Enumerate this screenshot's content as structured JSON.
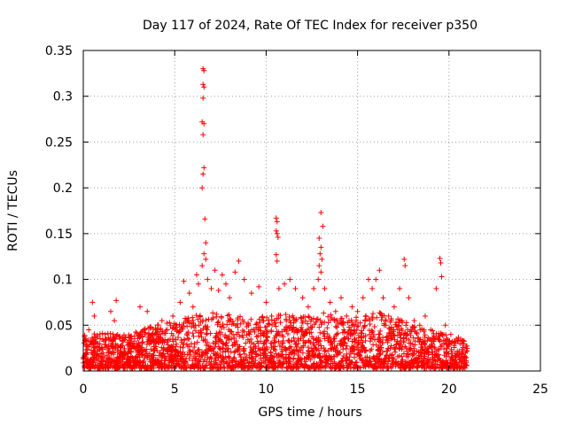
{
  "chart_data": {
    "type": "scatter",
    "title": "Day 117 of 2024, Rate Of TEC Index for receiver p350",
    "xlabel": "GPS time / hours",
    "ylabel": "ROTI / TECUs",
    "xlim": [
      0,
      25
    ],
    "ylim": [
      0,
      0.35
    ],
    "xticks": [
      0,
      5,
      10,
      15,
      20,
      25
    ],
    "xtick_labels": [
      "0",
      "5",
      "10",
      "15",
      "20",
      "25"
    ],
    "yticks": [
      0,
      0.05,
      0.1,
      0.15,
      0.2,
      0.25,
      0.3,
      0.35
    ],
    "ytick_labels": [
      "0",
      "0.05",
      "0.1",
      "0.15",
      "0.2",
      "0.25",
      "0.3",
      "0.35"
    ],
    "grid": true,
    "marker": "+",
    "color": "#ff0000",
    "points": [
      {
        "x": 0.1,
        "y": 0.035
      },
      {
        "x": 0.2,
        "y": 0.02
      },
      {
        "x": 0.3,
        "y": 0.045
      },
      {
        "x": 0.5,
        "y": 0.075
      },
      {
        "x": 0.6,
        "y": 0.06
      },
      {
        "x": 0.8,
        "y": 0.03
      },
      {
        "x": 1.0,
        "y": 0.025
      },
      {
        "x": 1.2,
        "y": 0.04
      },
      {
        "x": 1.5,
        "y": 0.065
      },
      {
        "x": 1.7,
        "y": 0.055
      },
      {
        "x": 1.8,
        "y": 0.077
      },
      {
        "x": 2.0,
        "y": 0.035
      },
      {
        "x": 2.3,
        "y": 0.02
      },
      {
        "x": 2.6,
        "y": 0.03
      },
      {
        "x": 2.9,
        "y": 0.025
      },
      {
        "x": 3.1,
        "y": 0.07
      },
      {
        "x": 3.3,
        "y": 0.045
      },
      {
        "x": 3.5,
        "y": 0.065
      },
      {
        "x": 3.8,
        "y": 0.04
      },
      {
        "x": 4.0,
        "y": 0.035
      },
      {
        "x": 4.3,
        "y": 0.055
      },
      {
        "x": 4.6,
        "y": 0.045
      },
      {
        "x": 4.9,
        "y": 0.06
      },
      {
        "x": 5.1,
        "y": 0.05
      },
      {
        "x": 5.3,
        "y": 0.075
      },
      {
        "x": 5.5,
        "y": 0.098
      },
      {
        "x": 5.8,
        "y": 0.085
      },
      {
        "x": 6.0,
        "y": 0.07
      },
      {
        "x": 6.2,
        "y": 0.105
      },
      {
        "x": 6.3,
        "y": 0.095
      },
      {
        "x": 6.55,
        "y": 0.33
      },
      {
        "x": 6.6,
        "y": 0.328
      },
      {
        "x": 6.55,
        "y": 0.313
      },
      {
        "x": 6.6,
        "y": 0.31
      },
      {
        "x": 6.55,
        "y": 0.298
      },
      {
        "x": 6.5,
        "y": 0.272
      },
      {
        "x": 6.6,
        "y": 0.27
      },
      {
        "x": 6.55,
        "y": 0.258
      },
      {
        "x": 6.6,
        "y": 0.222
      },
      {
        "x": 6.55,
        "y": 0.215
      },
      {
        "x": 6.5,
        "y": 0.2
      },
      {
        "x": 6.65,
        "y": 0.166
      },
      {
        "x": 6.7,
        "y": 0.14
      },
      {
        "x": 6.6,
        "y": 0.128
      },
      {
        "x": 6.7,
        "y": 0.122
      },
      {
        "x": 6.5,
        "y": 0.115
      },
      {
        "x": 6.8,
        "y": 0.1
      },
      {
        "x": 7.0,
        "y": 0.09
      },
      {
        "x": 7.2,
        "y": 0.11
      },
      {
        "x": 7.4,
        "y": 0.088
      },
      {
        "x": 7.6,
        "y": 0.105
      },
      {
        "x": 7.8,
        "y": 0.095
      },
      {
        "x": 8.0,
        "y": 0.08
      },
      {
        "x": 8.3,
        "y": 0.108
      },
      {
        "x": 8.5,
        "y": 0.12
      },
      {
        "x": 8.8,
        "y": 0.1
      },
      {
        "x": 9.2,
        "y": 0.085
      },
      {
        "x": 9.6,
        "y": 0.092
      },
      {
        "x": 10.0,
        "y": 0.075
      },
      {
        "x": 10.3,
        "y": 0.06
      },
      {
        "x": 10.55,
        "y": 0.167
      },
      {
        "x": 10.6,
        "y": 0.163
      },
      {
        "x": 10.55,
        "y": 0.153
      },
      {
        "x": 10.6,
        "y": 0.15
      },
      {
        "x": 10.65,
        "y": 0.146
      },
      {
        "x": 10.55,
        "y": 0.127
      },
      {
        "x": 10.6,
        "y": 0.12
      },
      {
        "x": 10.7,
        "y": 0.09
      },
      {
        "x": 11.0,
        "y": 0.095
      },
      {
        "x": 11.3,
        "y": 0.1
      },
      {
        "x": 11.6,
        "y": 0.09
      },
      {
        "x": 12.0,
        "y": 0.08
      },
      {
        "x": 12.3,
        "y": 0.07
      },
      {
        "x": 12.6,
        "y": 0.09
      },
      {
        "x": 13.0,
        "y": 0.173
      },
      {
        "x": 13.1,
        "y": 0.158
      },
      {
        "x": 12.9,
        "y": 0.145
      },
      {
        "x": 13.0,
        "y": 0.135
      },
      {
        "x": 12.95,
        "y": 0.128
      },
      {
        "x": 13.05,
        "y": 0.122
      },
      {
        "x": 12.9,
        "y": 0.115
      },
      {
        "x": 13.0,
        "y": 0.108
      },
      {
        "x": 12.85,
        "y": 0.1
      },
      {
        "x": 13.2,
        "y": 0.09
      },
      {
        "x": 13.5,
        "y": 0.075
      },
      {
        "x": 13.8,
        "y": 0.065
      },
      {
        "x": 14.1,
        "y": 0.08
      },
      {
        "x": 14.4,
        "y": 0.06
      },
      {
        "x": 14.7,
        "y": 0.07
      },
      {
        "x": 15.0,
        "y": 0.065
      },
      {
        "x": 15.3,
        "y": 0.08
      },
      {
        "x": 15.6,
        "y": 0.1
      },
      {
        "x": 15.8,
        "y": 0.09
      },
      {
        "x": 16.0,
        "y": 0.1
      },
      {
        "x": 16.2,
        "y": 0.11
      },
      {
        "x": 16.4,
        "y": 0.08
      },
      {
        "x": 16.7,
        "y": 0.06
      },
      {
        "x": 17.0,
        "y": 0.07
      },
      {
        "x": 17.3,
        "y": 0.09
      },
      {
        "x": 17.55,
        "y": 0.122
      },
      {
        "x": 17.6,
        "y": 0.115
      },
      {
        "x": 17.8,
        "y": 0.08
      },
      {
        "x": 18.1,
        "y": 0.055
      },
      {
        "x": 18.4,
        "y": 0.05
      },
      {
        "x": 18.7,
        "y": 0.06
      },
      {
        "x": 19.0,
        "y": 0.045
      },
      {
        "x": 19.3,
        "y": 0.09
      },
      {
        "x": 19.5,
        "y": 0.123
      },
      {
        "x": 19.55,
        "y": 0.118
      },
      {
        "x": 19.6,
        "y": 0.103
      },
      {
        "x": 19.8,
        "y": 0.05
      },
      {
        "x": 20.1,
        "y": 0.04
      },
      {
        "x": 20.4,
        "y": 0.035
      },
      {
        "x": 20.7,
        "y": 0.03
      },
      {
        "x": 20.9,
        "y": 0.02
      }
    ],
    "dense_band": {
      "x": [
        0,
        21
      ],
      "y_low": 0.003,
      "y_high_profile": [
        {
          "x": 0,
          "y": 0.04
        },
        {
          "x": 1,
          "y": 0.042
        },
        {
          "x": 2,
          "y": 0.04
        },
        {
          "x": 3,
          "y": 0.045
        },
        {
          "x": 4,
          "y": 0.05
        },
        {
          "x": 5,
          "y": 0.055
        },
        {
          "x": 6,
          "y": 0.06
        },
        {
          "x": 7,
          "y": 0.065
        },
        {
          "x": 8,
          "y": 0.062
        },
        {
          "x": 9,
          "y": 0.058
        },
        {
          "x": 10,
          "y": 0.06
        },
        {
          "x": 11,
          "y": 0.062
        },
        {
          "x": 12,
          "y": 0.06
        },
        {
          "x": 13,
          "y": 0.065
        },
        {
          "x": 14,
          "y": 0.058
        },
        {
          "x": 15,
          "y": 0.06
        },
        {
          "x": 16,
          "y": 0.065
        },
        {
          "x": 17,
          "y": 0.06
        },
        {
          "x": 18,
          "y": 0.05
        },
        {
          "x": 19,
          "y": 0.045
        },
        {
          "x": 20,
          "y": 0.04
        },
        {
          "x": 21,
          "y": 0.035
        }
      ]
    }
  }
}
